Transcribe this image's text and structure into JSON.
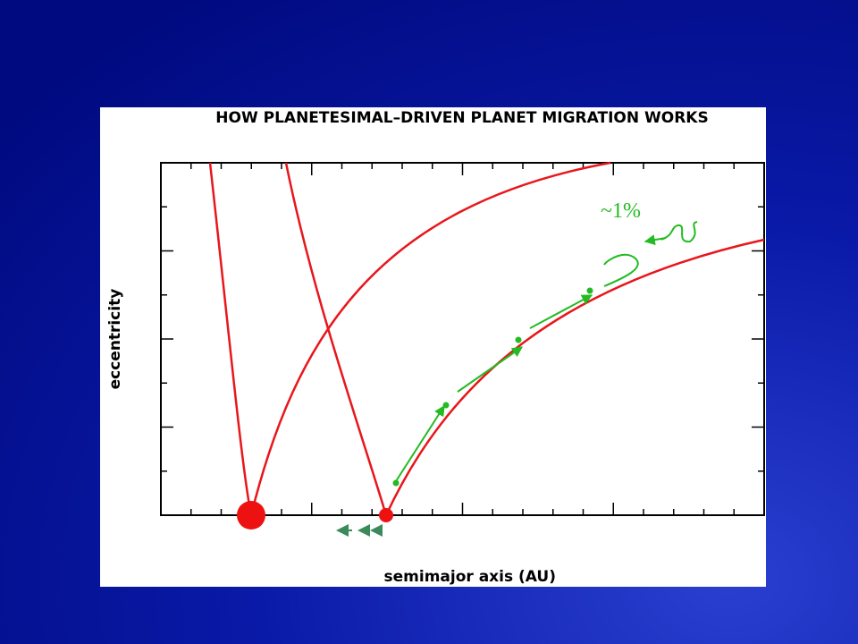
{
  "title": "HOW PLANETESIMAL–DRIVEN PLANET MIGRATION WORKS",
  "y_axis_label": "eccentricity",
  "x_axis_label": "semimajor axis (AU)",
  "annotation": "~1%"
}
